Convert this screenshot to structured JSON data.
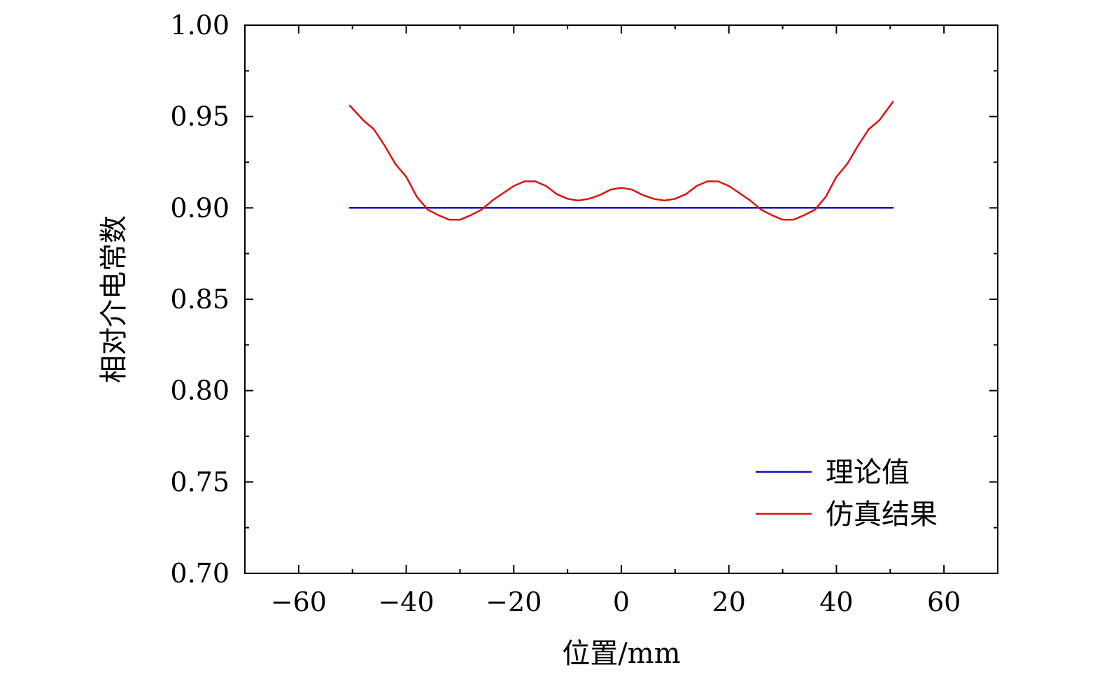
{
  "chart_data": {
    "type": "line",
    "title": "",
    "xlabel": "位置/mm",
    "ylabel": "相对介电常数",
    "xlim": [
      -70,
      70
    ],
    "ylim": [
      0.7,
      1.0
    ],
    "xticks": [
      -60,
      -40,
      -20,
      0,
      20,
      40,
      60
    ],
    "xtick_labels": [
      "−60",
      "−40",
      "−20",
      "0",
      "20",
      "40",
      "60"
    ],
    "yticks": [
      0.7,
      0.75,
      0.8,
      0.85,
      0.9,
      0.95,
      1.0
    ],
    "ytick_labels": [
      "0.70",
      "0.75",
      "0.80",
      "0.85",
      "0.90",
      "0.95",
      "1.00"
    ],
    "grid": false,
    "legend_position": "bottom-right",
    "series": [
      {
        "name": "理论值",
        "color": "#1010c8",
        "x": [
          -50.5,
          50.5
        ],
        "y": [
          0.9,
          0.9
        ]
      },
      {
        "name": "仿真结果",
        "color": "#e01010",
        "x": [
          -50.5,
          -48,
          -46,
          -44,
          -42,
          -40,
          -38,
          -36,
          -34,
          -32,
          -30,
          -28,
          -26,
          -24,
          -22,
          -20,
          -18,
          -16,
          -14,
          -12,
          -10,
          -8,
          -6,
          -4,
          -2,
          0,
          2,
          4,
          6,
          8,
          10,
          12,
          14,
          16,
          18,
          20,
          22,
          24,
          26,
          28,
          30,
          32,
          34,
          36,
          38,
          40,
          42,
          44,
          46,
          48,
          50.5
        ],
        "y": [
          0.956,
          0.948,
          0.943,
          0.934,
          0.924,
          0.917,
          0.906,
          0.899,
          0.896,
          0.8935,
          0.8935,
          0.896,
          0.899,
          0.904,
          0.908,
          0.912,
          0.9145,
          0.9145,
          0.912,
          0.9075,
          0.905,
          0.904,
          0.905,
          0.907,
          0.91,
          0.911,
          0.91,
          0.907,
          0.905,
          0.904,
          0.905,
          0.9075,
          0.912,
          0.9145,
          0.9145,
          0.912,
          0.908,
          0.904,
          0.899,
          0.896,
          0.8935,
          0.8935,
          0.896,
          0.899,
          0.906,
          0.917,
          0.924,
          0.934,
          0.943,
          0.948,
          0.958
        ]
      }
    ]
  }
}
